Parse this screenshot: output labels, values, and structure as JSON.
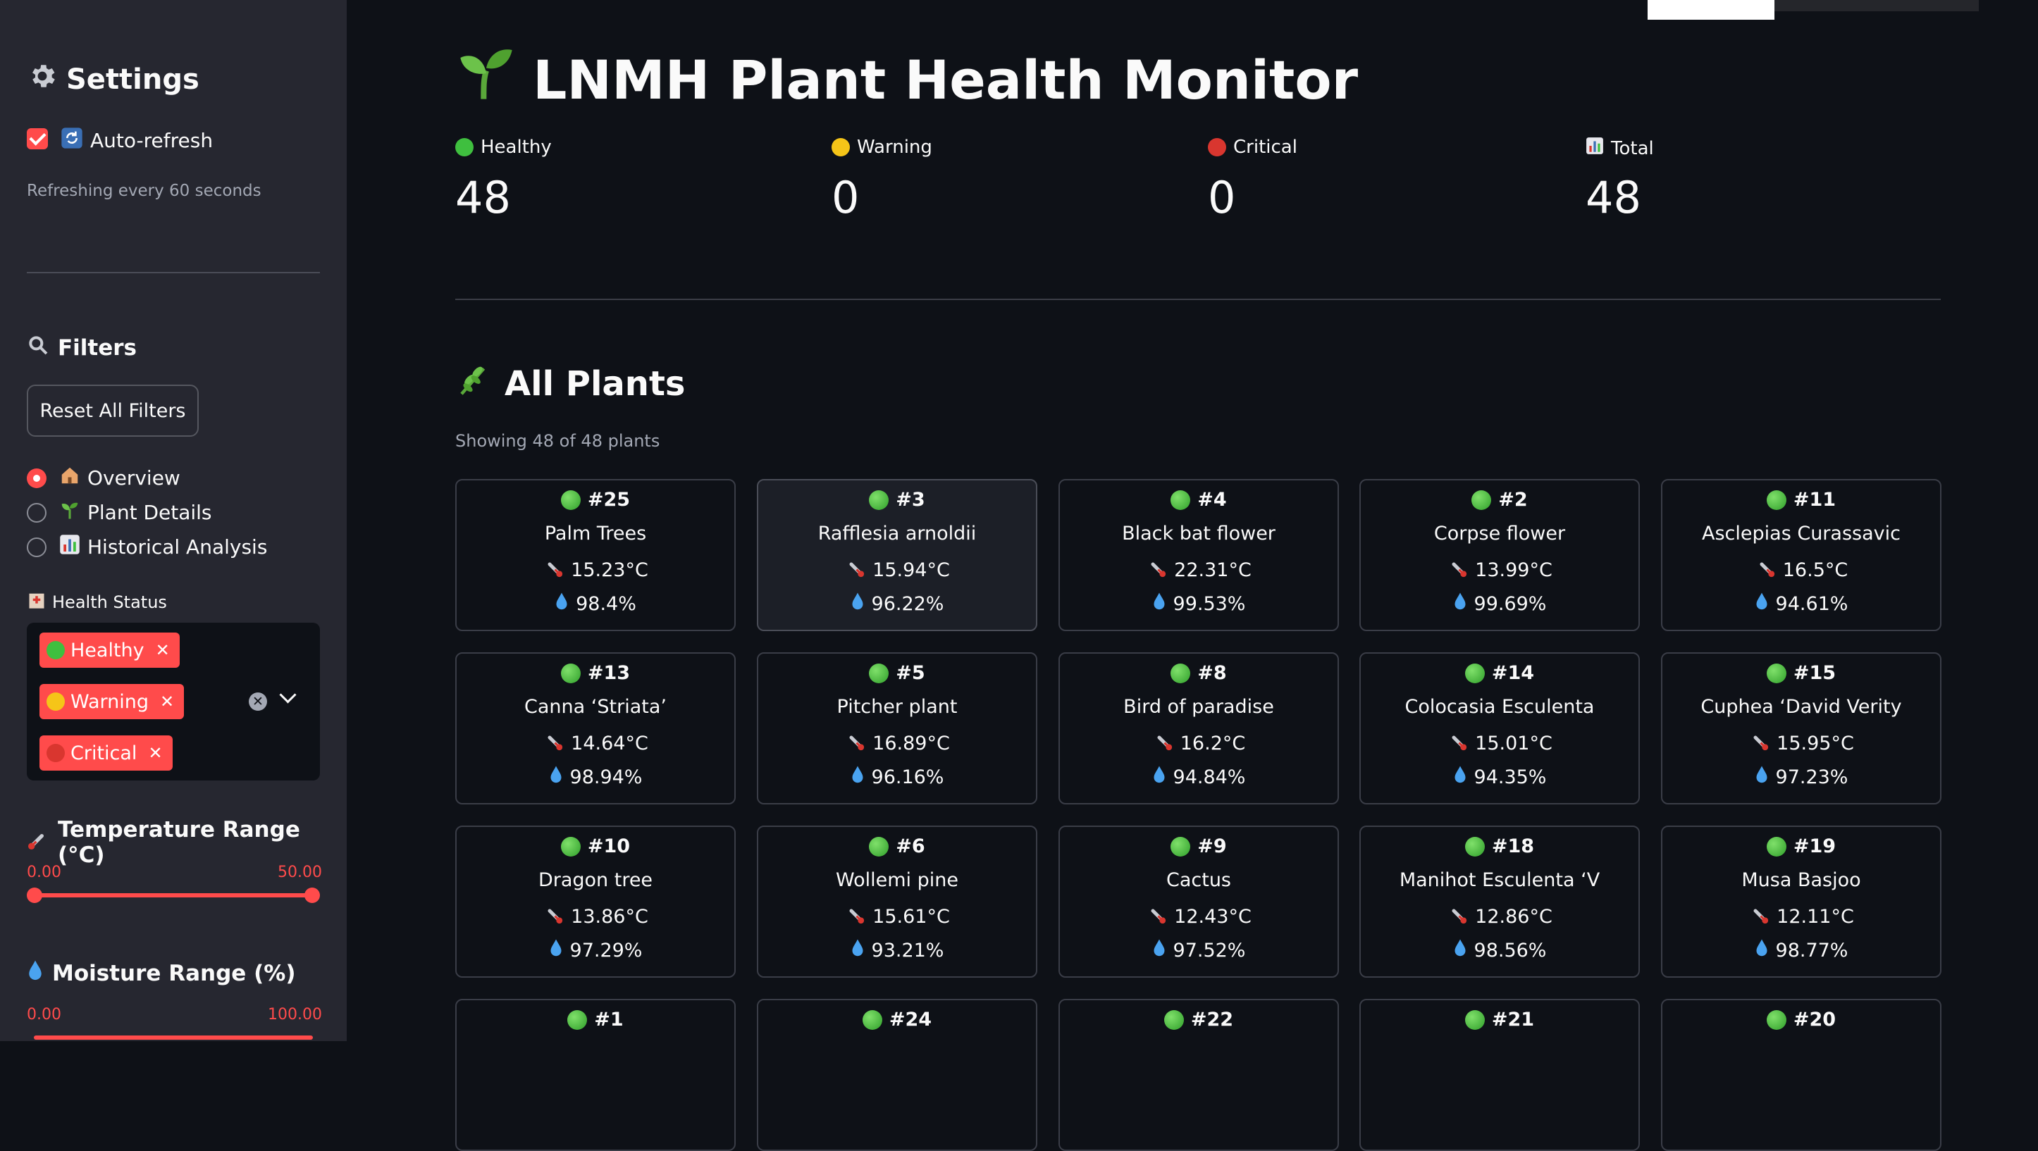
{
  "sidebar": {
    "settings_title": "Settings",
    "auto_refresh": {
      "label": "Auto-refresh",
      "checked": true
    },
    "refresh_note": "Refreshing every 60 seconds",
    "filters_title": "Filters",
    "reset_button": "Reset All Filters",
    "nav": [
      {
        "label": "Overview",
        "icon": "house-icon",
        "selected": true
      },
      {
        "label": "Plant Details",
        "icon": "seedling-icon",
        "selected": false
      },
      {
        "label": "Historical Analysis",
        "icon": "bar-chart-icon",
        "selected": false
      }
    ],
    "health_status": {
      "label": "Health Status",
      "chips": [
        {
          "label": "Healthy",
          "color": "#3fbf3f"
        },
        {
          "label": "Warning",
          "color": "#f5c518"
        },
        {
          "label": "Critical",
          "color": "#d9362f"
        }
      ]
    },
    "temperature_range": {
      "label": "Temperature Range (°C)",
      "min": "0.00",
      "max": "50.00"
    },
    "moisture_range": {
      "label": "Moisture Range (%)",
      "min": "0.00",
      "max": "100.00"
    }
  },
  "header": {
    "title": "LNMH Plant Health Monitor"
  },
  "metrics": [
    {
      "label": "Healthy",
      "value": "48",
      "icon": "green-circle-icon",
      "color": "#3fbf3f"
    },
    {
      "label": "Warning",
      "value": "0",
      "icon": "yellow-circle-icon",
      "color": "#f5c518"
    },
    {
      "label": "Critical",
      "value": "0",
      "icon": "red-circle-icon",
      "color": "#d9362f"
    },
    {
      "label": "Total",
      "value": "48",
      "icon": "bar-chart-icon",
      "color": "#4a90e2"
    }
  ],
  "plants_section": {
    "title": "All Plants",
    "showing": "Showing 48 of 48 plants"
  },
  "plants": [
    {
      "id": "#25",
      "name": "Palm Trees",
      "temp": "15.23°C",
      "moisture": "98.4%"
    },
    {
      "id": "#3",
      "name": "Rafflesia arnoldii",
      "temp": "15.94°C",
      "moisture": "96.22%"
    },
    {
      "id": "#4",
      "name": "Black bat flower",
      "temp": "22.31°C",
      "moisture": "99.53%"
    },
    {
      "id": "#2",
      "name": "Corpse flower",
      "temp": "13.99°C",
      "moisture": "99.69%"
    },
    {
      "id": "#11",
      "name": "Asclepias Curassavic",
      "temp": "16.5°C",
      "moisture": "94.61%"
    },
    {
      "id": "#13",
      "name": "Canna ‘Striata’",
      "temp": "14.64°C",
      "moisture": "98.94%"
    },
    {
      "id": "#5",
      "name": "Pitcher plant",
      "temp": "16.89°C",
      "moisture": "96.16%"
    },
    {
      "id": "#8",
      "name": "Bird of paradise",
      "temp": "16.2°C",
      "moisture": "94.84%"
    },
    {
      "id": "#14",
      "name": "Colocasia Esculenta",
      "temp": "15.01°C",
      "moisture": "94.35%"
    },
    {
      "id": "#15",
      "name": "Cuphea ‘David Verity",
      "temp": "15.95°C",
      "moisture": "97.23%"
    },
    {
      "id": "#10",
      "name": "Dragon tree",
      "temp": "13.86°C",
      "moisture": "97.29%"
    },
    {
      "id": "#6",
      "name": "Wollemi pine",
      "temp": "15.61°C",
      "moisture": "93.21%"
    },
    {
      "id": "#9",
      "name": "Cactus",
      "temp": "12.43°C",
      "moisture": "97.52%"
    },
    {
      "id": "#18",
      "name": "Manihot Esculenta ‘V",
      "temp": "12.86°C",
      "moisture": "98.56%"
    },
    {
      "id": "#19",
      "name": "Musa Basjoo",
      "temp": "12.11°C",
      "moisture": "98.77%"
    },
    {
      "id": "#1",
      "name": "",
      "temp": "",
      "moisture": ""
    },
    {
      "id": "#24",
      "name": "",
      "temp": "",
      "moisture": ""
    },
    {
      "id": "#22",
      "name": "",
      "temp": "",
      "moisture": ""
    },
    {
      "id": "#21",
      "name": "",
      "temp": "",
      "moisture": ""
    },
    {
      "id": "#20",
      "name": "",
      "temp": "",
      "moisture": ""
    }
  ]
}
